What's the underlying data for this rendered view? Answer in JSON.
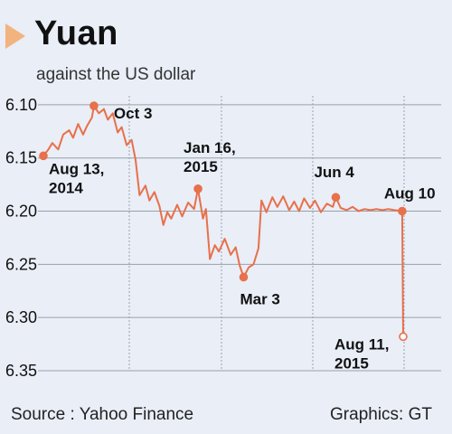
{
  "header": {
    "title": "Yuan",
    "subtitle": "against the US dollar"
  },
  "footer": {
    "source": "Source : Yahoo Finance",
    "graphics": "Graphics: GT"
  },
  "colors": {
    "line": "#e8704a",
    "grid": "#9aa0a8",
    "background": "#e9eef7",
    "accent_triangle": "#f2b37f"
  },
  "chart_data": {
    "type": "line",
    "title": "Yuan",
    "subtitle": "against the US dollar",
    "y_axis": {
      "inverted": true,
      "ylim": [
        6.095,
        6.35
      ],
      "ticks": [
        6.1,
        6.15,
        6.2,
        6.25,
        6.3,
        6.35
      ],
      "tick_labels": [
        "6.10",
        "6.15",
        "6.20",
        "6.25",
        "6.30",
        "6.35"
      ]
    },
    "x_axis": {
      "start": "2014-08-13",
      "end": "2015-08-11",
      "grid": "vertical dashed"
    },
    "series": [
      {
        "name": "",
        "points": [
          [
            "2014-08-13",
            6.148
          ],
          [
            "2014-08-18",
            6.142
          ],
          [
            "2014-08-22",
            6.136
          ],
          [
            "2014-08-28",
            6.142
          ],
          [
            "2014-09-02",
            6.128
          ],
          [
            "2014-09-08",
            6.124
          ],
          [
            "2014-09-12",
            6.131
          ],
          [
            "2014-09-17",
            6.118
          ],
          [
            "2014-09-22",
            6.128
          ],
          [
            "2014-09-26",
            6.12
          ],
          [
            "2014-10-01",
            6.112
          ],
          [
            "2014-10-03",
            6.101
          ],
          [
            "2014-10-08",
            6.108
          ],
          [
            "2014-10-13",
            6.104
          ],
          [
            "2014-10-17",
            6.114
          ],
          [
            "2014-10-22",
            6.108
          ],
          [
            "2014-10-27",
            6.126
          ],
          [
            "2014-10-31",
            6.121
          ],
          [
            "2014-11-05",
            6.138
          ],
          [
            "2014-11-10",
            6.133
          ],
          [
            "2014-11-14",
            6.152
          ],
          [
            "2014-11-18",
            6.185
          ],
          [
            "2014-11-24",
            6.176
          ],
          [
            "2014-11-28",
            6.19
          ],
          [
            "2014-12-03",
            6.182
          ],
          [
            "2014-12-08",
            6.195
          ],
          [
            "2014-12-12",
            6.213
          ],
          [
            "2014-12-16",
            6.201
          ],
          [
            "2014-12-20",
            6.207
          ],
          [
            "2014-12-26",
            6.194
          ],
          [
            "2014-12-31",
            6.205
          ],
          [
            "2015-01-06",
            6.192
          ],
          [
            "2015-01-12",
            6.198
          ],
          [
            "2015-01-16",
            6.179
          ],
          [
            "2015-01-21",
            6.207
          ],
          [
            "2015-01-24",
            6.198
          ],
          [
            "2015-01-28",
            6.245
          ],
          [
            "2015-02-02",
            6.232
          ],
          [
            "2015-02-06",
            6.238
          ],
          [
            "2015-02-12",
            6.226
          ],
          [
            "2015-02-18",
            6.241
          ],
          [
            "2015-02-23",
            6.234
          ],
          [
            "2015-02-27",
            6.251
          ],
          [
            "2015-03-03",
            6.262
          ],
          [
            "2015-03-08",
            6.253
          ],
          [
            "2015-03-13",
            6.25
          ],
          [
            "2015-03-18",
            6.235
          ],
          [
            "2015-03-21",
            6.19
          ],
          [
            "2015-03-26",
            6.201
          ],
          [
            "2015-04-01",
            6.187
          ],
          [
            "2015-04-06",
            6.196
          ],
          [
            "2015-04-12",
            6.186
          ],
          [
            "2015-04-18",
            6.199
          ],
          [
            "2015-04-23",
            6.191
          ],
          [
            "2015-04-28",
            6.2
          ],
          [
            "2015-05-03",
            6.188
          ],
          [
            "2015-05-09",
            6.197
          ],
          [
            "2015-05-14",
            6.19
          ],
          [
            "2015-05-20",
            6.201
          ],
          [
            "2015-05-26",
            6.193
          ],
          [
            "2015-06-01",
            6.196
          ],
          [
            "2015-06-04",
            6.187
          ],
          [
            "2015-06-09",
            6.197
          ],
          [
            "2015-06-15",
            6.199
          ],
          [
            "2015-06-21",
            6.196
          ],
          [
            "2015-06-27",
            6.2
          ],
          [
            "2015-07-03",
            6.198
          ],
          [
            "2015-07-09",
            6.199
          ],
          [
            "2015-07-15",
            6.198
          ],
          [
            "2015-07-21",
            6.199
          ],
          [
            "2015-07-27",
            6.198
          ],
          [
            "2015-08-02",
            6.199
          ],
          [
            "2015-08-10",
            6.2
          ],
          [
            "2015-08-11",
            6.318
          ]
        ]
      }
    ],
    "annotations": [
      {
        "label_lines": [
          "Aug 13,",
          "2014"
        ],
        "date": "2014-08-13",
        "value": 6.148
      },
      {
        "label_lines": [
          "Oct 3"
        ],
        "date": "2014-10-03",
        "value": 6.101
      },
      {
        "label_lines": [
          "Jan 16,",
          "2015"
        ],
        "date": "2015-01-16",
        "value": 6.179
      },
      {
        "label_lines": [
          "Mar 3"
        ],
        "date": "2015-03-03",
        "value": 6.262
      },
      {
        "label_lines": [
          "Jun 4"
        ],
        "date": "2015-06-04",
        "value": 6.187
      },
      {
        "label_lines": [
          "Aug 10"
        ],
        "date": "2015-08-10",
        "value": 6.2
      },
      {
        "label_lines": [
          "Aug 11,",
          "2015"
        ],
        "date": "2015-08-11",
        "value": 6.318,
        "open_marker": true
      }
    ]
  }
}
